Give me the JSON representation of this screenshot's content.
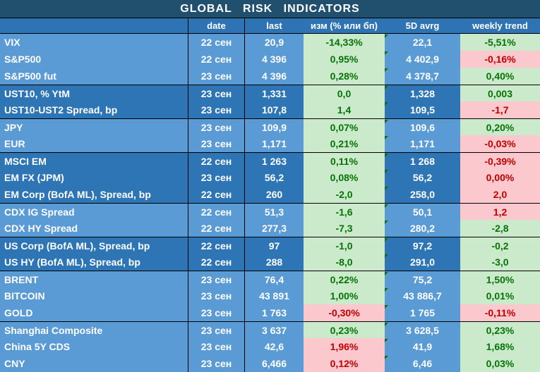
{
  "title": "GLOBAL  RISK  INDICATORS",
  "columns": {
    "label": "",
    "date": "date",
    "last": "last",
    "change": "изм (% или бп)",
    "avg": "5D avrg",
    "trend": "weekly trend"
  },
  "colors": {
    "title_bar": "#21506F",
    "header_row": "#2E74B5",
    "light_row": "#5B9BD5",
    "dark_row": "#2E75B6",
    "positive_bg": "#CBEACB",
    "negative_bg": "#FAC8CD",
    "positive_text": "#077307",
    "negative_text": "#C00000"
  },
  "rows": [
    {
      "label": "VIX",
      "date": "22 сен",
      "last": "20,9",
      "change": "-14,33%",
      "change_color": "green",
      "avg": "22,1",
      "trend": "-5,51%",
      "trend_color": "green",
      "shade": "light",
      "group_start": false
    },
    {
      "label": "S&P500",
      "date": "22 сен",
      "last": "4 396",
      "change": "0,95%",
      "change_color": "green",
      "avg": "4 402,9",
      "trend": "-0,16%",
      "trend_color": "red",
      "shade": "light",
      "group_start": false
    },
    {
      "label": "S&P500 fut",
      "date": "23 сен",
      "last": "4 396",
      "change": "0,28%",
      "change_color": "green",
      "avg": "4 378,7",
      "trend": "0,40%",
      "trend_color": "green",
      "shade": "light",
      "group_start": false
    },
    {
      "label": "UST10, % YtM",
      "date": "23 сен",
      "last": "1,331",
      "change": "0,0",
      "change_color": "green",
      "avg": "1,328",
      "trend": "0,003",
      "trend_color": "green",
      "shade": "dark",
      "group_start": true
    },
    {
      "label": "UST10-UST2 Spread, bp",
      "date": "23 сен",
      "last": "107,8",
      "change": "1,4",
      "change_color": "green",
      "avg": "109,5",
      "trend": "-1,7",
      "trend_color": "red",
      "shade": "dark",
      "group_start": false
    },
    {
      "label": "JPY",
      "date": "23 сен",
      "last": "109,9",
      "change": "0,07%",
      "change_color": "green",
      "avg": "109,6",
      "trend": "0,20%",
      "trend_color": "green",
      "shade": "light",
      "group_start": true
    },
    {
      "label": "EUR",
      "date": "23 сен",
      "last": "1,171",
      "change": "0,21%",
      "change_color": "green",
      "avg": "1,171",
      "trend": "-0,03%",
      "trend_color": "red",
      "shade": "light",
      "group_start": false
    },
    {
      "label": "MSCI EM",
      "date": "22 сен",
      "last": "1 263",
      "change": "0,11%",
      "change_color": "green",
      "avg": "1 268",
      "trend": "-0,39%",
      "trend_color": "red",
      "shade": "dark",
      "group_start": true
    },
    {
      "label": "EM FX (JPM)",
      "date": "23 сен",
      "last": "56,2",
      "change": "0,08%",
      "change_color": "green",
      "avg": "56,2",
      "trend": "0,00%",
      "trend_color": "red",
      "shade": "dark",
      "group_start": false
    },
    {
      "label": "EM Corp (BofA ML), Spread, bp",
      "date": "22 сен",
      "last": "260",
      "change": "-2,0",
      "change_color": "green",
      "avg": "258,0",
      "trend": "2,0",
      "trend_color": "red",
      "shade": "dark",
      "group_start": false
    },
    {
      "label": "CDX IG Spread",
      "date": "22 сен",
      "last": "51,3",
      "change": "-1,6",
      "change_color": "green",
      "avg": "50,1",
      "trend": "1,2",
      "trend_color": "red",
      "shade": "light",
      "group_start": true
    },
    {
      "label": "CDX HY Spread",
      "date": "22 сен",
      "last": "277,3",
      "change": "-7,3",
      "change_color": "green",
      "avg": "280,2",
      "trend": "-2,8",
      "trend_color": "green",
      "shade": "light",
      "group_start": false
    },
    {
      "label": "US Corp (BofA ML), Spread, bp",
      "date": "22 сен",
      "last": "97",
      "change": "-1,0",
      "change_color": "green",
      "avg": "97,2",
      "trend": "-0,2",
      "trend_color": "green",
      "shade": "dark",
      "group_start": true
    },
    {
      "label": "US HY (BofA ML), Spread, bp",
      "date": "22 сен",
      "last": "288",
      "change": "-8,0",
      "change_color": "green",
      "avg": "291,0",
      "trend": "-3,0",
      "trend_color": "green",
      "shade": "dark",
      "group_start": false
    },
    {
      "label": "BRENT",
      "date": "23 сен",
      "last": "76,4",
      "change": "0,22%",
      "change_color": "green",
      "avg": "75,2",
      "trend": "1,50%",
      "trend_color": "green",
      "shade": "light",
      "group_start": true
    },
    {
      "label": "BITCOIN",
      "date": "23 сен",
      "last": "43 891",
      "change": "1,00%",
      "change_color": "green",
      "avg": "43 886,7",
      "trend": "0,01%",
      "trend_color": "green",
      "shade": "light",
      "group_start": false
    },
    {
      "label": "GOLD",
      "date": "23 сен",
      "last": "1 763",
      "change": "-0,30%",
      "change_color": "red",
      "avg": "1 765",
      "trend": "-0,11%",
      "trend_color": "red",
      "shade": "light",
      "group_start": false
    },
    {
      "label": "Shanghai Composite",
      "date": "23 сен",
      "last": "3 637",
      "change": "0,23%",
      "change_color": "green",
      "avg": "3 628,5",
      "trend": "0,23%",
      "trend_color": "green",
      "shade": "light",
      "group_start": true
    },
    {
      "label": "China 5Y CDS",
      "date": "23 сен",
      "last": "42,6",
      "change": "1,96%",
      "change_color": "red",
      "avg": "41,9",
      "trend": "1,68%",
      "trend_color": "green",
      "shade": "light",
      "group_start": false
    },
    {
      "label": "CNY",
      "date": "23 сен",
      "last": "6,466",
      "change": "0,12%",
      "change_color": "red",
      "avg": "6,46",
      "trend": "0,03%",
      "trend_color": "green",
      "shade": "light",
      "group_start": false
    }
  ]
}
